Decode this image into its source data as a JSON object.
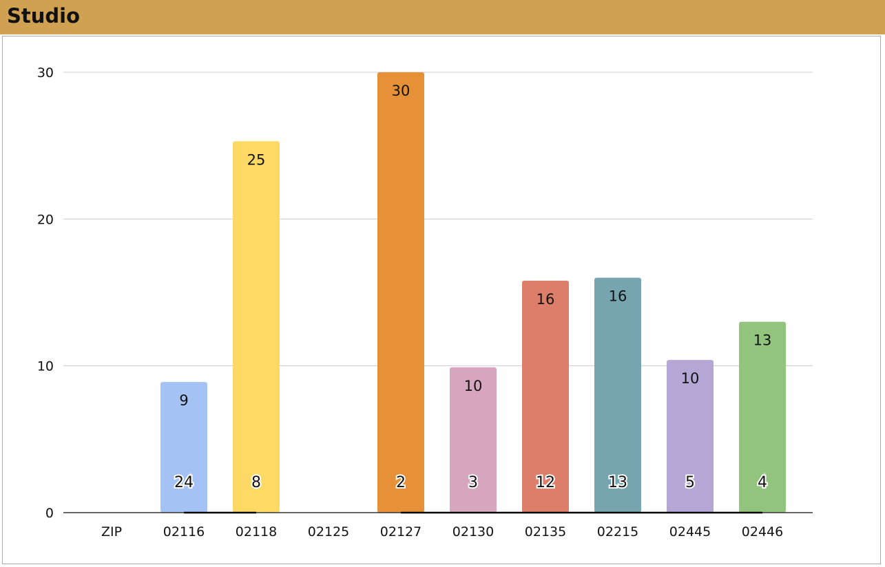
{
  "header": {
    "title": "Studio"
  },
  "chart_data": {
    "type": "bar",
    "title": "Studio",
    "categories": [
      "ZIP",
      "02116",
      "02118",
      "02125",
      "02127",
      "02130",
      "02135",
      "02215",
      "02445",
      "02446"
    ],
    "ylim": [
      0,
      30
    ],
    "yticks": [
      0,
      10,
      20,
      30
    ],
    "grid": true,
    "series": [
      {
        "type": "bar",
        "values": [
          null,
          8.9,
          25.3,
          null,
          30,
          9.9,
          15.8,
          16,
          10.4,
          13
        ],
        "labels": [
          "",
          "9",
          "25",
          "",
          "30",
          "10",
          "16",
          "16",
          "10",
          "13"
        ],
        "colors": [
          "",
          "#a4c2f4",
          "#ffd966",
          "",
          "#e69138",
          "#d5a6bd",
          "#dd7e6b",
          "#76a5af",
          "#b4a7d6",
          "#93c47d"
        ]
      },
      {
        "type": "line",
        "values": [
          null,
          24,
          8,
          null,
          2,
          3,
          12,
          13,
          5,
          4
        ],
        "labels": [
          "",
          "24",
          "8",
          "",
          "2",
          "3",
          "12",
          "13",
          "5",
          "4"
        ],
        "color": "#000000"
      }
    ]
  }
}
